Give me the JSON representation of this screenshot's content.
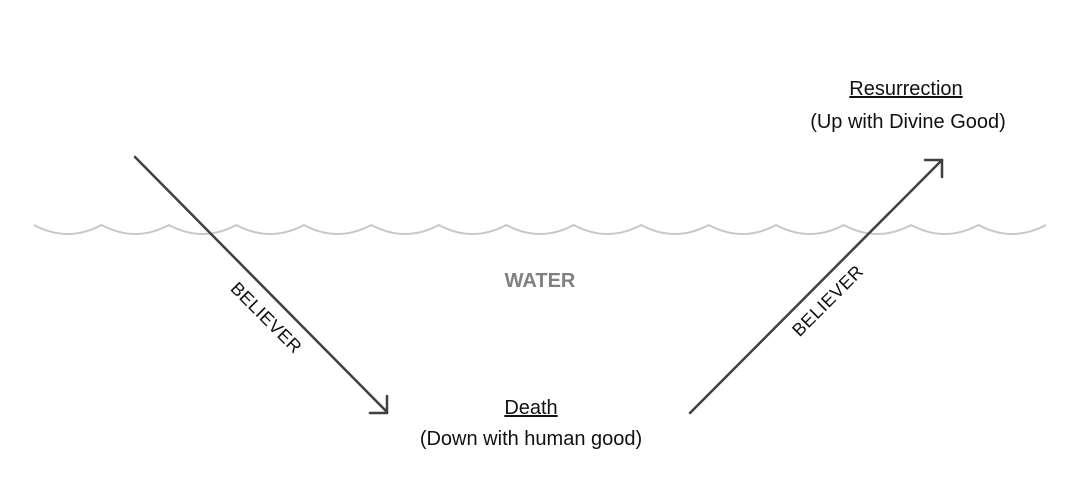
{
  "water": {
    "label": "WATER",
    "label_color": "#808080",
    "wave_color": "#c8c8c8"
  },
  "arrows": {
    "color": "#404040",
    "down_label": "BELIEVER",
    "up_label": "BELIEVER"
  },
  "death": {
    "title": "Death",
    "subtitle": "(Down with human good)"
  },
  "resurrection": {
    "title": "Resurrection",
    "subtitle": "(Up with Divine Good)"
  }
}
